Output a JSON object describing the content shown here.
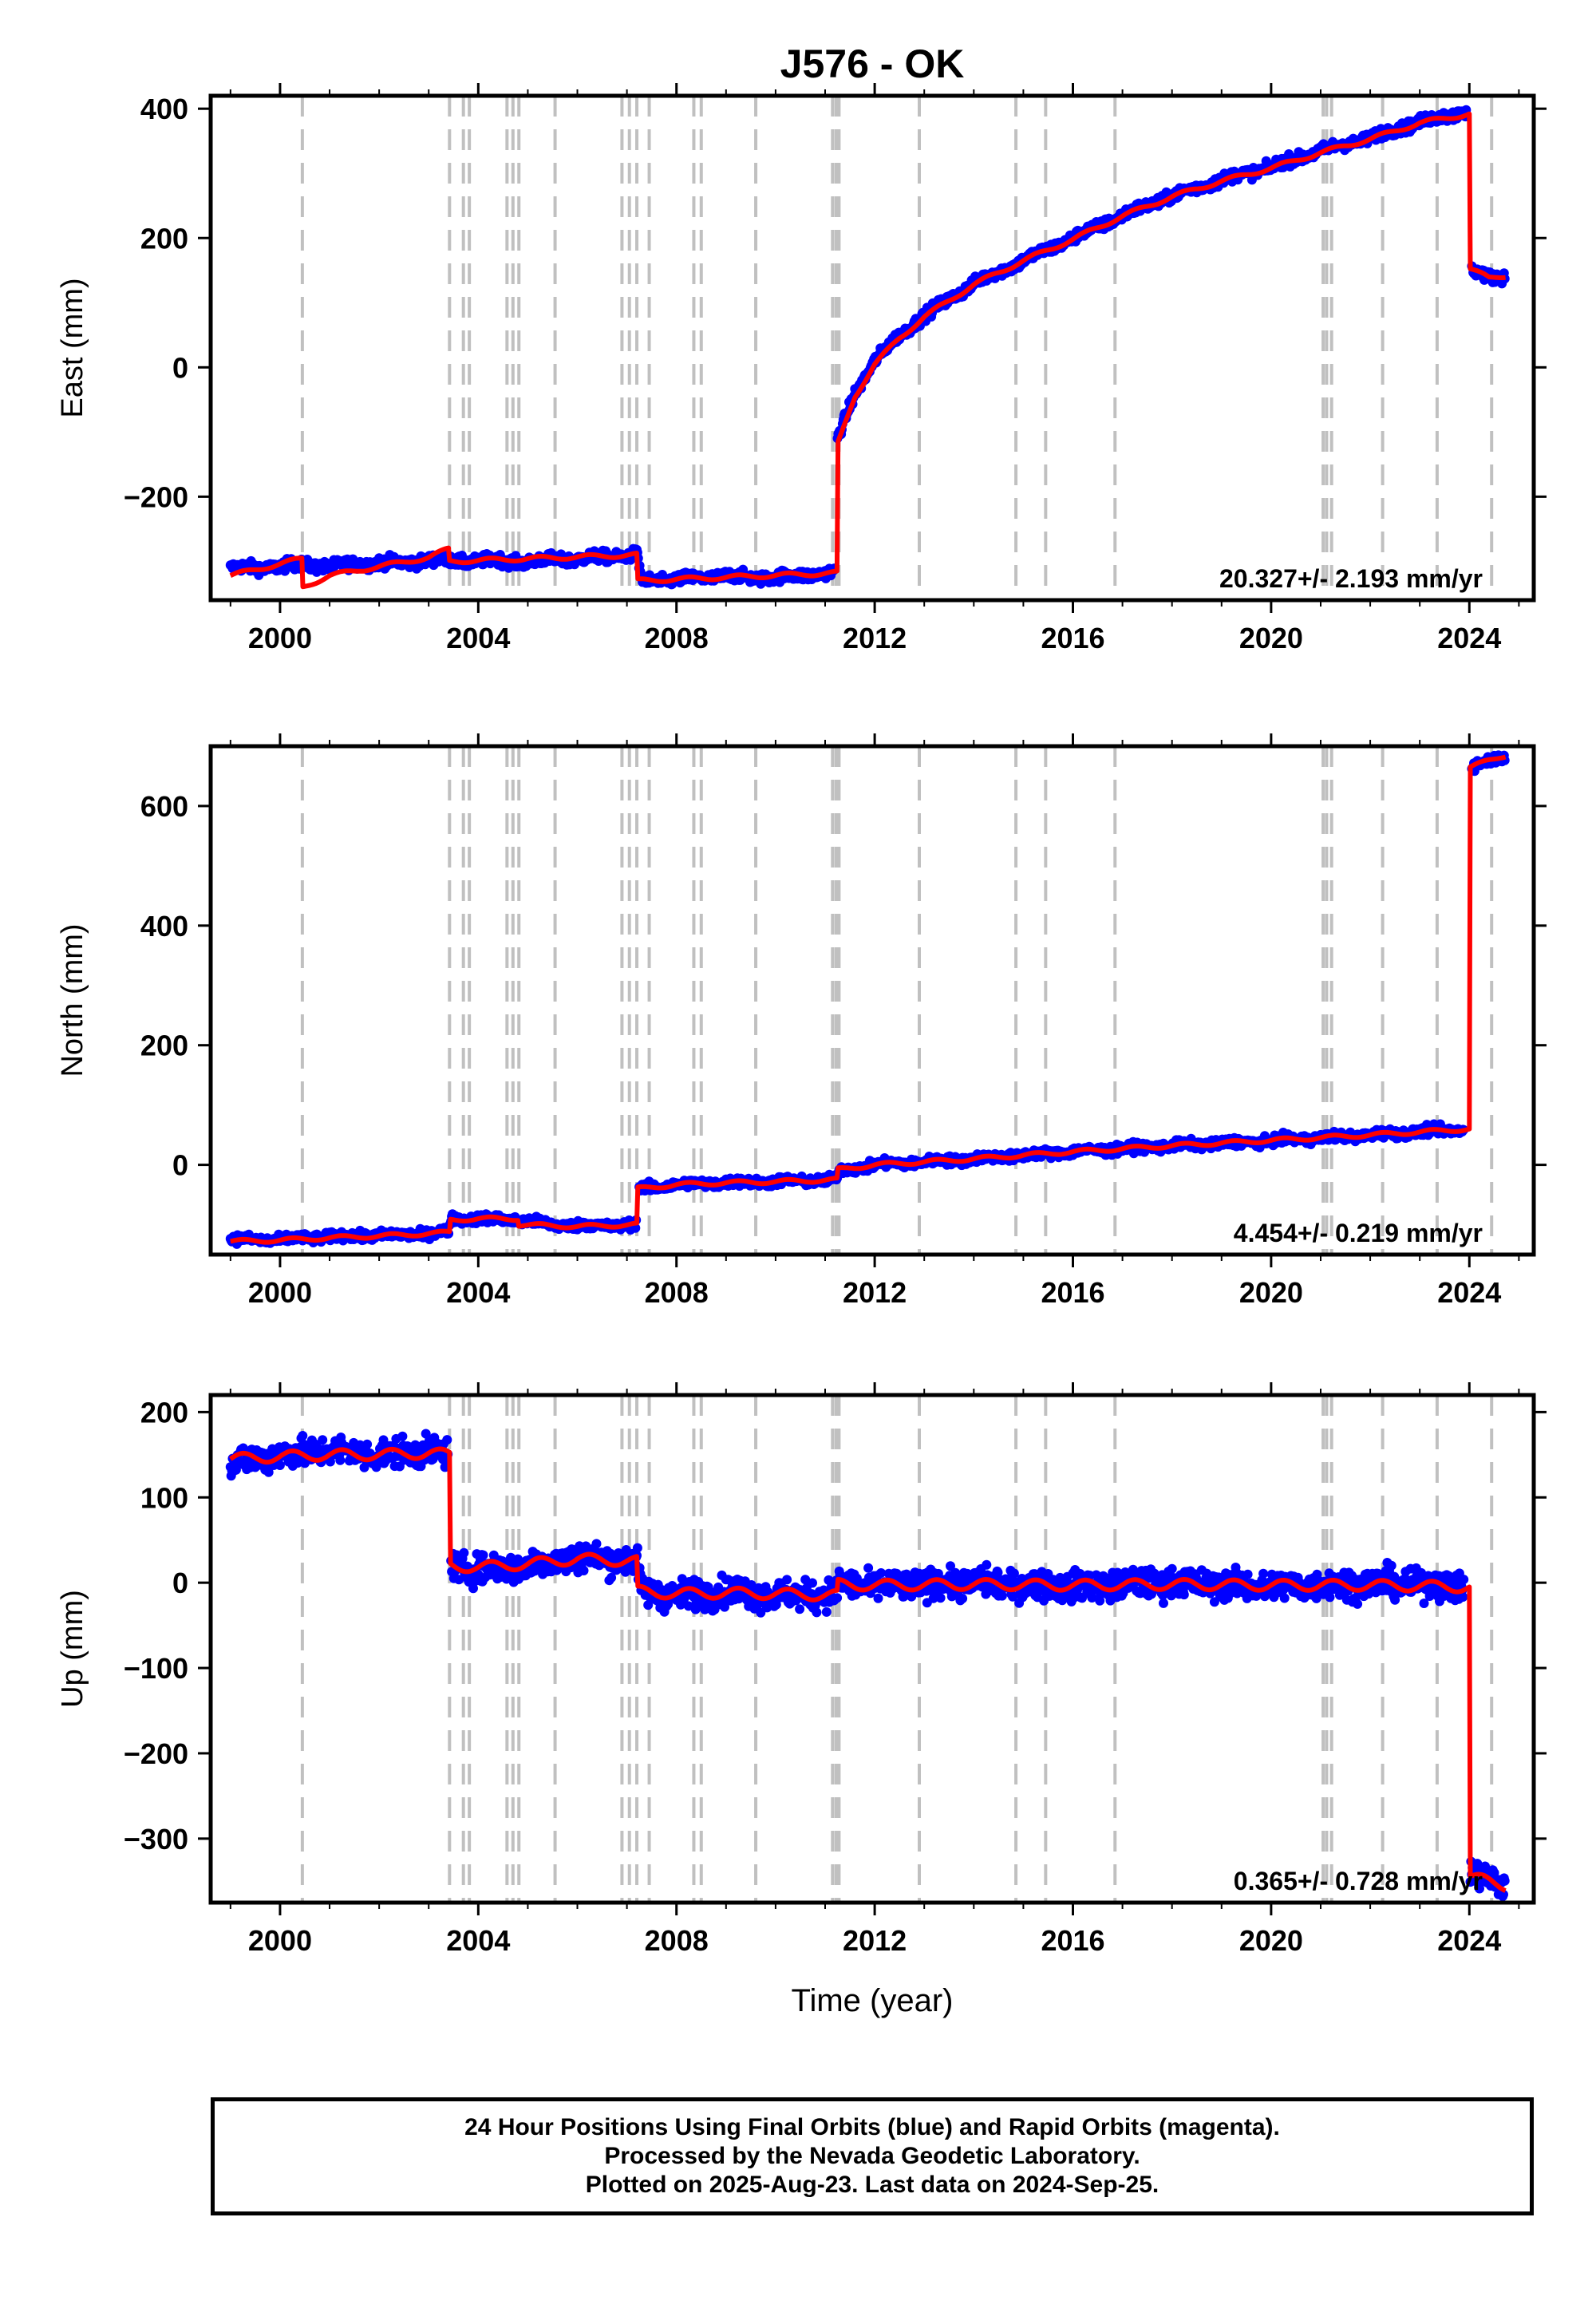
{
  "title": "J576 - OK",
  "xlabel": "Time (year)",
  "footer": {
    "line1": "24 Hour Positions Using Final Orbits (blue) and Rapid Orbits (magenta).",
    "line2": "Processed by the Nevada Geodetic Laboratory.",
    "line3": "Plotted on 2025-Aug-23. Last data on 2024-Sep-25."
  },
  "colors": {
    "final_orbit_points": "#0000ff",
    "model_fit": "#ff0000",
    "event_lines": "#c0c0c0",
    "frame": "#000000"
  },
  "chart_data": [
    {
      "type": "scatter",
      "panel": "east",
      "ylabel": "East (mm)",
      "xlim": [
        1998.6,
        2025.3
      ],
      "ylim": [
        -360,
        420
      ],
      "x_ticks": [
        2000,
        2004,
        2008,
        2012,
        2016,
        2020,
        2024
      ],
      "y_ticks": [
        -200,
        0,
        200,
        400
      ],
      "y_tick_labels": [
        "−200",
        "0",
        "200",
        "400"
      ],
      "rate_label": "20.327+/- 2.193 mm/yr",
      "event_lines": [
        2000.45,
        2003.42,
        2003.7,
        2003.82,
        2004.58,
        2004.7,
        2004.82,
        2005.55,
        2006.9,
        2007.05,
        2007.2,
        2007.45,
        2008.35,
        2008.5,
        2009.6,
        2011.15,
        2011.22,
        2011.28,
        2012.9,
        2014.85,
        2015.45,
        2016.85,
        2021.05,
        2021.12,
        2021.22,
        2022.25,
        2023.35,
        2024.45
      ],
      "series": [
        {
          "name": "Final Orbits",
          "style": "points",
          "x": [
            1999.0,
            1999.5,
            2000.0,
            2000.45,
            2001.0,
            2001.5,
            2002.0,
            2002.5,
            2003.0,
            2003.4,
            2003.8,
            2004.5,
            2005.0,
            2005.5,
            2006.0,
            2006.5,
            2007.0,
            2007.2,
            2007.3,
            2008.0,
            2008.5,
            2009.0,
            2009.5,
            2010.0,
            2010.5,
            2011.0,
            2011.2,
            2011.25,
            2011.6,
            2012.0,
            2012.5,
            2013.0,
            2014.0,
            2015.0,
            2016.0,
            2017.0,
            2018.0,
            2019.0,
            2020.0,
            2021.0,
            2022.0,
            2023.0,
            2023.95,
            2024.05,
            2024.4,
            2024.73
          ],
          "y": [
            -310,
            -310,
            -308,
            -305,
            -308,
            -304,
            -302,
            -302,
            -298,
            -298,
            -300,
            -298,
            -302,
            -296,
            -298,
            -292,
            -292,
            -290,
            -330,
            -328,
            -326,
            -322,
            -326,
            -324,
            -322,
            -318,
            -318,
            -110,
            -40,
            10,
            50,
            80,
            130,
            165,
            200,
            235,
            265,
            290,
            310,
            335,
            355,
            380,
            395,
            150,
            138,
            142
          ],
          "scatter": 8
        },
        {
          "name": "Model fit",
          "style": "line",
          "x": [
            1999.0,
            2000.44,
            2000.46,
            2001.0,
            2002.0,
            2003.0,
            2003.4,
            2003.42,
            2007.2,
            2007.22,
            2011.24,
            2011.26,
            2011.6,
            2012.0,
            2012.5,
            2013.0,
            2014.0,
            2015.0,
            2016.0,
            2017.0,
            2018.0,
            2019.0,
            2020.0,
            2021.0,
            2022.0,
            2023.0,
            2024.0,
            2024.02,
            2024.4,
            2024.73
          ],
          "y": [
            -322,
            -296,
            -340,
            -322,
            -308,
            -294,
            -281,
            -300,
            -290,
            -330,
            -318,
            -118,
            -45,
            5,
            45,
            78,
            128,
            165,
            198,
            234,
            264,
            288,
            308,
            332,
            353,
            378,
            392,
            152,
            138,
            142
          ],
          "seasonal": 3
        }
      ]
    },
    {
      "type": "scatter",
      "panel": "north",
      "ylabel": "North (mm)",
      "xlim": [
        1998.6,
        2025.3
      ],
      "ylim": [
        -150,
        700
      ],
      "x_ticks": [
        2000,
        2004,
        2008,
        2012,
        2016,
        2020,
        2024
      ],
      "y_ticks": [
        0,
        200,
        400,
        600
      ],
      "y_tick_labels": [
        "0",
        "200",
        "400",
        "600"
      ],
      "rate_label": "4.454+/- 0.219 mm/yr",
      "event_lines": [
        2000.45,
        2003.42,
        2003.7,
        2003.82,
        2004.58,
        2004.7,
        2004.82,
        2005.55,
        2006.9,
        2007.05,
        2007.2,
        2007.45,
        2008.35,
        2008.5,
        2009.6,
        2011.15,
        2011.22,
        2011.28,
        2012.9,
        2014.85,
        2015.45,
        2016.85,
        2021.05,
        2021.12,
        2021.22,
        2022.25,
        2023.35,
        2024.45
      ],
      "series": [
        {
          "name": "Final Orbits",
          "style": "points",
          "x": [
            1999.0,
            2000.0,
            2001.0,
            2002.0,
            2003.0,
            2003.4,
            2003.45,
            2004.0,
            2004.8,
            2005.5,
            2006.5,
            2007.2,
            2007.25,
            2008.0,
            2009.0,
            2010.0,
            2011.2,
            2011.3,
            2012.0,
            2014.0,
            2016.0,
            2018.0,
            2020.0,
            2022.0,
            2023.9,
            2024.05,
            2024.73
          ],
          "y": [
            -125,
            -125,
            -120,
            -118,
            -115,
            -112,
            -90,
            -90,
            -92,
            -100,
            -102,
            -100,
            -40,
            -33,
            -30,
            -28,
            -25,
            -10,
            0,
            10,
            22,
            32,
            40,
            50,
            60,
            665,
            685
          ],
          "scatter": 7
        },
        {
          "name": "Model fit",
          "style": "line",
          "x": [
            1999.0,
            2000.0,
            2001.0,
            2002.0,
            2003.0,
            2003.42,
            2003.44,
            2004.0,
            2004.8,
            2004.82,
            2006.0,
            2007.2,
            2007.22,
            2008.0,
            2009.0,
            2010.0,
            2011.24,
            2011.26,
            2012.0,
            2014.0,
            2016.0,
            2018.0,
            2020.0,
            2022.0,
            2024.0,
            2024.02,
            2024.73
          ],
          "y": [
            -128,
            -126,
            -122,
            -119,
            -115,
            -113,
            -92,
            -90,
            -90,
            -100,
            -103,
            -100,
            -40,
            -33,
            -30,
            -28,
            -25,
            -8,
            0,
            10,
            22,
            32,
            41,
            50,
            60,
            665,
            685
          ],
          "seasonal": 3
        }
      ]
    },
    {
      "type": "scatter",
      "panel": "up",
      "ylabel": "Up (mm)",
      "xlim": [
        1998.6,
        2025.3
      ],
      "ylim": [
        -375,
        220
      ],
      "x_ticks": [
        2000,
        2004,
        2008,
        2012,
        2016,
        2020,
        2024
      ],
      "y_ticks": [
        -300,
        -200,
        -100,
        0,
        100,
        200
      ],
      "y_tick_labels": [
        "−300",
        "−200",
        "−100",
        "0",
        "100",
        "200"
      ],
      "rate_label": "0.365+/- 0.728 mm/yr",
      "event_lines": [
        2000.45,
        2003.42,
        2003.7,
        2003.82,
        2004.58,
        2004.7,
        2004.82,
        2005.55,
        2006.9,
        2007.05,
        2007.2,
        2007.45,
        2008.35,
        2008.5,
        2009.6,
        2011.15,
        2011.22,
        2011.28,
        2012.9,
        2014.85,
        2015.45,
        2016.85,
        2021.05,
        2021.12,
        2021.22,
        2022.25,
        2023.35,
        2024.45
      ],
      "series": [
        {
          "name": "Final Orbits",
          "style": "points",
          "x": [
            1999.0,
            2000.0,
            2001.0,
            2002.0,
            2003.0,
            2003.4,
            2003.45,
            2004.0,
            2005.0,
            2006.0,
            2007.2,
            2007.3,
            2008.0,
            2009.0,
            2010.0,
            2011.2,
            2011.3,
            2012.0,
            2014.0,
            2016.0,
            2018.0,
            2020.0,
            2022.0,
            2023.9,
            2024.02,
            2024.73
          ],
          "y": [
            140,
            150,
            155,
            150,
            155,
            150,
            20,
            15,
            20,
            30,
            25,
            -10,
            -15,
            -10,
            -15,
            -15,
            0,
            -5,
            0,
            -5,
            0,
            -5,
            0,
            -5,
            -340,
            -355
          ],
          "scatter": 16
        },
        {
          "name": "Model fit",
          "style": "line",
          "x": [
            1999.0,
            2000.0,
            2001.0,
            2002.0,
            2003.0,
            2003.42,
            2003.44,
            2004.0,
            2005.0,
            2006.0,
            2007.2,
            2007.22,
            2008.0,
            2009.0,
            2010.0,
            2011.24,
            2011.26,
            2012.0,
            2014.0,
            2016.0,
            2018.0,
            2020.0,
            2022.0,
            2024.0,
            2024.02,
            2024.73
          ],
          "y": [
            145,
            148,
            150,
            150,
            152,
            150,
            20,
            18,
            22,
            28,
            25,
            -10,
            -13,
            -12,
            -13,
            -15,
            -2,
            -3,
            -2,
            -3,
            -2,
            -3,
            -3,
            -5,
            -345,
            -355
          ],
          "seasonal": 6
        }
      ]
    }
  ]
}
